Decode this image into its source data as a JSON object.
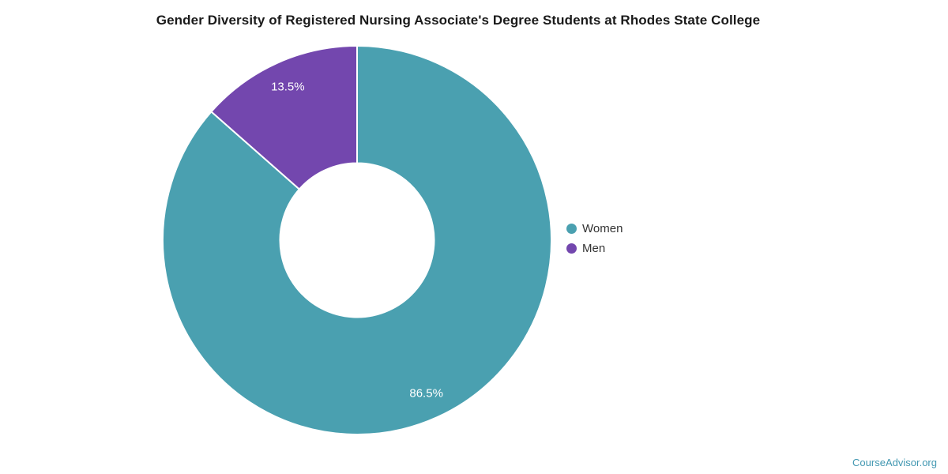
{
  "chart_data": {
    "type": "pie",
    "donut": true,
    "title": "Gender Diversity of Registered Nursing Associate's Degree Students at Rhodes State College",
    "start_angle_deg": 0,
    "direction": "clockwise",
    "legend_position": "right",
    "series": [
      {
        "name": "Women",
        "value": 86.5,
        "label": "86.5%",
        "color": "#4AA0B0"
      },
      {
        "name": "Men",
        "value": 13.5,
        "label": "13.5%",
        "color": "#7347AE"
      }
    ],
    "slice_border_color": "#FFFFFF",
    "data_label_color": "#FFFFFF",
    "watermark": "CourseAdvisor.org",
    "watermark_color": "#4197B1"
  }
}
